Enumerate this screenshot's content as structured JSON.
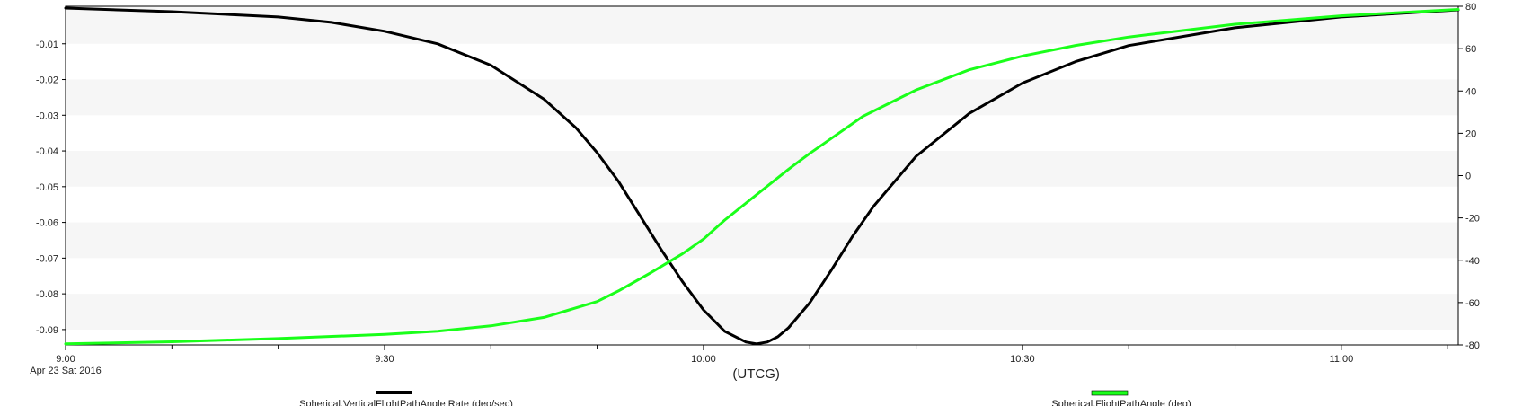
{
  "chart_data": {
    "type": "line",
    "xlabel": "(UTCG)",
    "date_label": "Apr 23 Sat 2016",
    "x_ticks": [
      "9:00",
      "9:30",
      "10:00",
      "10:30",
      "11:00"
    ],
    "x_range_minutes_after_0900": [
      0,
      131
    ],
    "left_axis": {
      "ticks": [
        "-0.01",
        "-0.02",
        "-0.03",
        "-0.04",
        "-0.05",
        "-0.06",
        "-0.07",
        "-0.08",
        "-0.09"
      ],
      "range": [
        -0.0943,
        0.0005
      ]
    },
    "right_axis": {
      "ticks": [
        "80",
        "60",
        "40",
        "20",
        "0",
        "-20",
        "-40",
        "-60",
        "-80"
      ],
      "range": [
        -80,
        80
      ]
    },
    "grid": "alternating horizontal bands",
    "legend_placement": "bottom",
    "series": [
      {
        "name": "Spherical.VerticalFlightPathAngle Rate (deg/sec)",
        "axis": "left",
        "color": "#000000",
        "x_minutes": [
          0,
          10,
          20,
          25,
          30,
          35,
          40,
          45,
          48,
          50,
          52,
          54,
          56,
          58,
          60,
          62,
          64,
          65,
          66,
          67,
          68,
          70,
          72,
          74,
          76,
          80,
          85,
          90,
          95,
          100,
          110,
          120,
          131
        ],
        "values": [
          0.0,
          -0.001,
          -0.0025,
          -0.004,
          -0.0065,
          -0.01,
          -0.016,
          -0.0255,
          -0.0335,
          -0.0405,
          -0.0485,
          -0.058,
          -0.0675,
          -0.0765,
          -0.0845,
          -0.0905,
          -0.0935,
          -0.094,
          -0.0935,
          -0.092,
          -0.0895,
          -0.0825,
          -0.0735,
          -0.064,
          -0.0555,
          -0.0415,
          -0.0295,
          -0.021,
          -0.015,
          -0.0105,
          -0.0055,
          -0.0025,
          -0.0005
        ]
      },
      {
        "name": "Spherical.FlightPathAngle (deg)",
        "axis": "right",
        "color": "#1aff1a",
        "x_minutes": [
          0,
          10,
          20,
          30,
          35,
          40,
          45,
          50,
          52,
          55,
          58,
          60,
          62,
          65,
          68,
          70,
          72,
          75,
          78,
          80,
          85,
          90,
          95,
          100,
          110,
          120,
          131
        ],
        "values": [
          -79.5,
          -78.5,
          -77,
          -75,
          -73.5,
          -71,
          -67,
          -59.5,
          -54.5,
          -46,
          -37,
          -30,
          -21,
          -9,
          3,
          10.5,
          17.5,
          28,
          35.5,
          40.5,
          50,
          56.5,
          61.5,
          65.5,
          71.5,
          75.5,
          78.5
        ]
      }
    ]
  }
}
